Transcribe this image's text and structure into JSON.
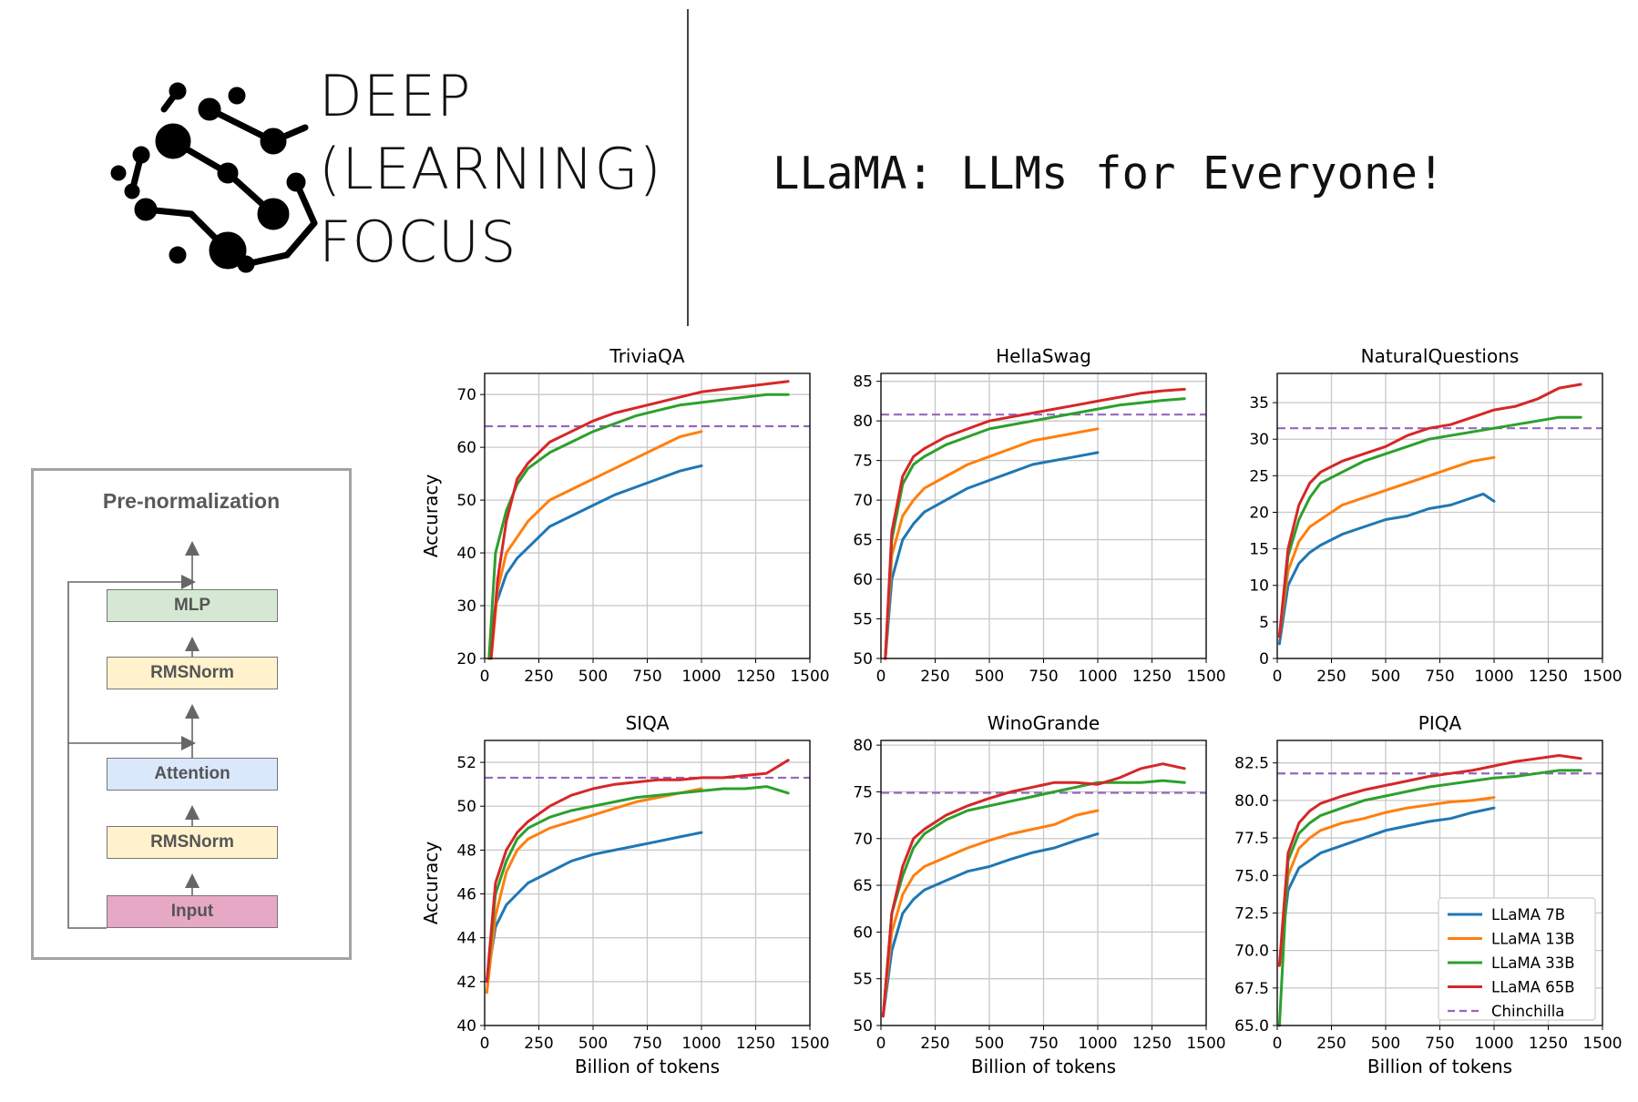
{
  "brand": {
    "lines": [
      "DEEP",
      "(LEARNING)",
      "FOCUS"
    ]
  },
  "headline": "LLaMA: LLMs for Everyone!",
  "diagram": {
    "title": "Pre-normalization",
    "blocks": [
      {
        "label": "MLP",
        "color": "#d5e8d4"
      },
      {
        "label": "RMSNorm",
        "color": "#fff2cc"
      },
      {
        "label": "Attention",
        "color": "#dae8fc"
      },
      {
        "label": "RMSNorm",
        "color": "#fff2cc"
      },
      {
        "label": "Input",
        "color": "#e6a8c4"
      }
    ]
  },
  "colors": {
    "LLaMA 7B": "#1f77b4",
    "LLaMA 13B": "#ff7f0e",
    "LLaMA 33B": "#2ca02c",
    "LLaMA 65B": "#d62728",
    "Chinchilla": "#9467bd"
  },
  "legend": {
    "entries": [
      "LLaMA 7B",
      "LLaMA 13B",
      "LLaMA 33B",
      "LLaMA 65B",
      "Chinchilla"
    ],
    "placement": "lower-right of PIQA panel"
  },
  "chart_data": [
    {
      "type": "line",
      "title": "TriviaQA",
      "xlabel": "",
      "ylabel": "Accuracy",
      "xlim": [
        0,
        1500
      ],
      "ylim": [
        20,
        74
      ],
      "grid": true,
      "xticks": [
        0,
        250,
        500,
        750,
        1000,
        1250,
        1500
      ],
      "yticks": [
        20,
        30,
        40,
        50,
        60,
        70
      ],
      "ytick_labels": [
        "20",
        "30",
        "40",
        "50",
        "60",
        "70"
      ],
      "chinchilla": 64,
      "series": [
        {
          "name": "LLaMA 7B",
          "x": [
            20,
            50,
            100,
            150,
            200,
            250,
            300,
            400,
            500,
            600,
            700,
            800,
            900,
            1000
          ],
          "y": [
            20,
            30,
            36,
            39,
            41,
            43,
            45,
            47,
            49,
            51,
            52.5,
            54,
            55.5,
            56.5
          ]
        },
        {
          "name": "LLaMA 13B",
          "x": [
            30,
            60,
            100,
            150,
            200,
            250,
            300,
            400,
            500,
            600,
            700,
            800,
            900,
            1000
          ],
          "y": [
            20,
            33,
            40,
            43,
            46,
            48,
            50,
            52,
            54,
            56,
            58,
            60,
            62,
            63
          ]
        },
        {
          "name": "LLaMA 33B",
          "x": [
            20,
            50,
            100,
            150,
            200,
            300,
            400,
            500,
            600,
            700,
            800,
            900,
            1000,
            1100,
            1200,
            1300,
            1400
          ],
          "y": [
            20,
            40,
            48,
            53,
            56,
            59,
            61,
            63,
            64.5,
            66,
            67,
            68,
            68.5,
            69,
            69.5,
            70,
            70
          ]
        },
        {
          "name": "LLaMA 65B",
          "x": [
            30,
            60,
            100,
            150,
            200,
            300,
            400,
            500,
            600,
            700,
            800,
            900,
            1000,
            1100,
            1200,
            1300,
            1400
          ],
          "y": [
            20,
            35,
            46,
            54,
            57,
            61,
            63,
            65,
            66.5,
            67.5,
            68.5,
            69.5,
            70.5,
            71,
            71.5,
            72,
            72.5
          ]
        }
      ]
    },
    {
      "type": "line",
      "title": "HellaSwag",
      "xlabel": "",
      "ylabel": "",
      "xlim": [
        0,
        1500
      ],
      "ylim": [
        50,
        86
      ],
      "grid": true,
      "xticks": [
        0,
        250,
        500,
        750,
        1000,
        1250,
        1500
      ],
      "yticks": [
        50,
        55,
        60,
        65,
        70,
        75,
        80,
        85
      ],
      "ytick_labels": [
        "50",
        "55",
        "60",
        "65",
        "70",
        "75",
        "80",
        "85"
      ],
      "chinchilla": 80.8,
      "series": [
        {
          "name": "LLaMA 7B",
          "x": [
            20,
            50,
            100,
            150,
            200,
            300,
            400,
            500,
            600,
            700,
            800,
            900,
            1000
          ],
          "y": [
            50,
            60,
            65,
            67,
            68.5,
            70,
            71.5,
            72.5,
            73.5,
            74.5,
            75,
            75.5,
            76
          ]
        },
        {
          "name": "LLaMA 13B",
          "x": [
            20,
            50,
            100,
            150,
            200,
            300,
            400,
            500,
            600,
            700,
            800,
            900,
            1000
          ],
          "y": [
            50,
            63,
            68,
            70,
            71.5,
            73,
            74.5,
            75.5,
            76.5,
            77.5,
            78,
            78.5,
            79
          ]
        },
        {
          "name": "LLaMA 33B",
          "x": [
            20,
            50,
            100,
            150,
            200,
            300,
            400,
            500,
            600,
            700,
            800,
            900,
            1000,
            1100,
            1200,
            1300,
            1400
          ],
          "y": [
            50,
            65,
            72,
            74.5,
            75.5,
            77,
            78,
            79,
            79.5,
            80,
            80.5,
            81,
            81.5,
            82,
            82.3,
            82.6,
            82.8
          ]
        },
        {
          "name": "LLaMA 65B",
          "x": [
            20,
            50,
            100,
            150,
            200,
            300,
            400,
            500,
            600,
            700,
            800,
            900,
            1000,
            1100,
            1200,
            1300,
            1400
          ],
          "y": [
            50,
            66,
            73,
            75.5,
            76.5,
            78,
            79,
            80,
            80.5,
            81,
            81.5,
            82,
            82.5,
            83,
            83.5,
            83.8,
            84
          ]
        }
      ]
    },
    {
      "type": "line",
      "title": "NaturalQuestions",
      "xlabel": "",
      "ylabel": "",
      "xlim": [
        0,
        1500
      ],
      "ylim": [
        0,
        39
      ],
      "grid": true,
      "xticks": [
        0,
        250,
        500,
        750,
        1000,
        1250,
        1500
      ],
      "yticks": [
        0,
        5,
        10,
        15,
        20,
        25,
        30,
        35
      ],
      "ytick_labels": [
        "0",
        "5",
        "10",
        "15",
        "20",
        "25",
        "30",
        "35"
      ],
      "chinchilla": 31.5,
      "series": [
        {
          "name": "LLaMA 7B",
          "x": [
            10,
            50,
            100,
            150,
            200,
            300,
            400,
            500,
            600,
            700,
            800,
            900,
            950,
            1000
          ],
          "y": [
            2,
            10,
            13,
            14.5,
            15.5,
            17,
            18,
            19,
            19.5,
            20.5,
            21,
            22,
            22.5,
            21.5
          ]
        },
        {
          "name": "LLaMA 13B",
          "x": [
            10,
            50,
            100,
            150,
            200,
            300,
            400,
            500,
            600,
            700,
            800,
            900,
            1000
          ],
          "y": [
            3,
            12,
            16,
            18,
            19,
            21,
            22,
            23,
            24,
            25,
            26,
            27,
            27.5
          ]
        },
        {
          "name": "LLaMA 33B",
          "x": [
            10,
            50,
            100,
            150,
            200,
            300,
            400,
            500,
            600,
            700,
            800,
            900,
            1000,
            1100,
            1200,
            1300,
            1400
          ],
          "y": [
            3,
            14,
            19,
            22,
            24,
            25.5,
            27,
            28,
            29,
            30,
            30.5,
            31,
            31.5,
            32,
            32.5,
            33,
            33
          ]
        },
        {
          "name": "LLaMA 65B",
          "x": [
            10,
            50,
            100,
            150,
            200,
            300,
            400,
            500,
            600,
            700,
            800,
            900,
            1000,
            1100,
            1200,
            1300,
            1400
          ],
          "y": [
            3,
            15,
            21,
            24,
            25.5,
            27,
            28,
            29,
            30.5,
            31.5,
            32,
            33,
            34,
            34.5,
            35.5,
            37,
            37.5
          ]
        }
      ]
    },
    {
      "type": "line",
      "title": "SIQA",
      "xlabel": "Billion of tokens",
      "ylabel": "Accuracy",
      "xlim": [
        0,
        1500
      ],
      "ylim": [
        40,
        53
      ],
      "grid": true,
      "xticks": [
        0,
        250,
        500,
        750,
        1000,
        1250,
        1500
      ],
      "yticks": [
        40,
        42,
        44,
        46,
        48,
        50,
        52
      ],
      "ytick_labels": [
        "40",
        "42",
        "44",
        "46",
        "48",
        "50",
        "52"
      ],
      "chinchilla": 51.3,
      "series": [
        {
          "name": "LLaMA 7B",
          "x": [
            10,
            50,
            100,
            150,
            200,
            300,
            400,
            500,
            600,
            700,
            800,
            900,
            1000
          ],
          "y": [
            42,
            44.5,
            45.5,
            46,
            46.5,
            47,
            47.5,
            47.8,
            48,
            48.2,
            48.4,
            48.6,
            48.8
          ]
        },
        {
          "name": "LLaMA 13B",
          "x": [
            10,
            50,
            100,
            150,
            200,
            300,
            400,
            500,
            600,
            700,
            800,
            900,
            1000
          ],
          "y": [
            41.5,
            45,
            47,
            48,
            48.5,
            49,
            49.3,
            49.6,
            49.9,
            50.2,
            50.4,
            50.6,
            50.8
          ]
        },
        {
          "name": "LLaMA 33B",
          "x": [
            10,
            50,
            100,
            150,
            200,
            300,
            400,
            500,
            600,
            700,
            800,
            900,
            1000,
            1100,
            1200,
            1300,
            1400
          ],
          "y": [
            42,
            46,
            47.5,
            48.5,
            49,
            49.5,
            49.8,
            50,
            50.2,
            50.4,
            50.5,
            50.6,
            50.7,
            50.8,
            50.8,
            50.9,
            50.6
          ]
        },
        {
          "name": "LLaMA 65B",
          "x": [
            10,
            50,
            100,
            150,
            200,
            300,
            400,
            500,
            600,
            700,
            800,
            900,
            1000,
            1100,
            1200,
            1300,
            1400
          ],
          "y": [
            42,
            46.5,
            48,
            48.8,
            49.3,
            50,
            50.5,
            50.8,
            51,
            51.1,
            51.2,
            51.2,
            51.3,
            51.3,
            51.4,
            51.5,
            52.1
          ]
        }
      ]
    },
    {
      "type": "line",
      "title": "WinoGrande",
      "xlabel": "Billion of tokens",
      "ylabel": "",
      "xlim": [
        0,
        1500
      ],
      "ylim": [
        50,
        80.5
      ],
      "grid": true,
      "xticks": [
        0,
        250,
        500,
        750,
        1000,
        1250,
        1500
      ],
      "yticks": [
        50,
        55,
        60,
        65,
        70,
        75,
        80
      ],
      "ytick_labels": [
        "50",
        "55",
        "60",
        "65",
        "70",
        "75",
        "80"
      ],
      "chinchilla": 74.9,
      "series": [
        {
          "name": "LLaMA 7B",
          "x": [
            10,
            50,
            100,
            150,
            200,
            300,
            400,
            500,
            600,
            700,
            800,
            900,
            1000
          ],
          "y": [
            51,
            58,
            62,
            63.5,
            64.5,
            65.5,
            66.5,
            67,
            67.8,
            68.5,
            69,
            69.8,
            70.5
          ]
        },
        {
          "name": "LLaMA 13B",
          "x": [
            10,
            50,
            100,
            150,
            200,
            300,
            400,
            500,
            600,
            700,
            800,
            900,
            1000
          ],
          "y": [
            51,
            60,
            64,
            66,
            67,
            68,
            69,
            69.8,
            70.5,
            71,
            71.5,
            72.5,
            73
          ]
        },
        {
          "name": "LLaMA 33B",
          "x": [
            10,
            50,
            100,
            150,
            200,
            300,
            400,
            500,
            600,
            700,
            800,
            900,
            1000,
            1100,
            1200,
            1300,
            1400
          ],
          "y": [
            51,
            62,
            66,
            69,
            70.5,
            72,
            73,
            73.5,
            74,
            74.5,
            75,
            75.5,
            76,
            76,
            76,
            76.2,
            76
          ]
        },
        {
          "name": "LLaMA 65B",
          "x": [
            10,
            50,
            100,
            150,
            200,
            300,
            400,
            500,
            600,
            700,
            800,
            900,
            1000,
            1100,
            1200,
            1300,
            1400
          ],
          "y": [
            51,
            62,
            67,
            70,
            71,
            72.5,
            73.5,
            74.3,
            75,
            75.5,
            76,
            76,
            75.8,
            76.5,
            77.5,
            78,
            77.5
          ]
        }
      ]
    },
    {
      "type": "line",
      "title": "PIQA",
      "xlabel": "Billion of tokens",
      "ylabel": "",
      "xlim": [
        0,
        1500
      ],
      "ylim": [
        65,
        84
      ],
      "grid": true,
      "xticks": [
        0,
        250,
        500,
        750,
        1000,
        1250,
        1500
      ],
      "yticks": [
        65,
        67.5,
        70,
        72.5,
        75,
        77.5,
        80,
        82.5
      ],
      "ytick_labels": [
        "65.0",
        "67.5",
        "70.0",
        "72.5",
        "75.0",
        "77.5",
        "80.0",
        "82.5"
      ],
      "chinchilla": 81.8,
      "series": [
        {
          "name": "LLaMA 7B",
          "x": [
            10,
            50,
            100,
            150,
            200,
            300,
            400,
            500,
            600,
            700,
            800,
            900,
            1000
          ],
          "y": [
            69,
            74,
            75.5,
            76,
            76.5,
            77,
            77.5,
            78,
            78.3,
            78.6,
            78.8,
            79.2,
            79.5
          ]
        },
        {
          "name": "LLaMA 13B",
          "x": [
            10,
            50,
            100,
            150,
            200,
            300,
            400,
            500,
            600,
            700,
            800,
            900,
            1000
          ],
          "y": [
            69,
            75,
            76.8,
            77.5,
            78,
            78.5,
            78.8,
            79.2,
            79.5,
            79.7,
            79.9,
            80,
            80.2
          ]
        },
        {
          "name": "LLaMA 33B",
          "x": [
            10,
            50,
            100,
            150,
            200,
            300,
            400,
            500,
            600,
            700,
            800,
            900,
            1000,
            1100,
            1200,
            1300,
            1400
          ],
          "y": [
            65,
            76,
            77.8,
            78.5,
            79,
            79.5,
            80,
            80.3,
            80.6,
            80.9,
            81.1,
            81.3,
            81.5,
            81.6,
            81.8,
            82,
            82
          ]
        },
        {
          "name": "LLaMA 65B",
          "x": [
            10,
            50,
            100,
            150,
            200,
            300,
            400,
            500,
            600,
            700,
            800,
            900,
            1000,
            1100,
            1200,
            1300,
            1400
          ],
          "y": [
            69,
            76.5,
            78.5,
            79.3,
            79.8,
            80.3,
            80.7,
            81,
            81.3,
            81.6,
            81.8,
            82,
            82.3,
            82.6,
            82.8,
            83,
            82.8
          ]
        }
      ]
    }
  ]
}
